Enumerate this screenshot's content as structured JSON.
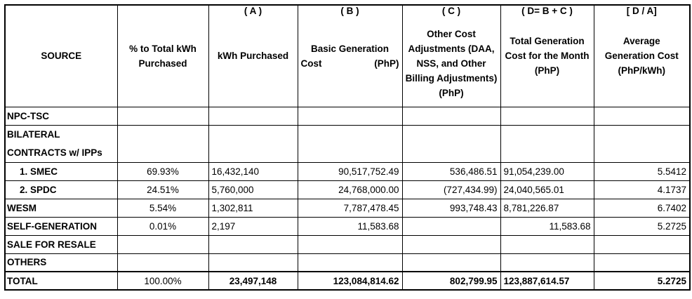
{
  "header": {
    "source": "SOURCE",
    "percent": "% to Total kWh Purchased",
    "kwh_letter": "( A )",
    "kwh": "kWh Purchased",
    "basic_letter": "( B )",
    "basic_line1": "Basic Generation",
    "basic_line2a": "Cost",
    "basic_line2b": "(PhP)",
    "other_letter": "( C )",
    "other": "Other Cost Adjustments (DAA, NSS, and Other Billing Adjustments) (PhP)",
    "total_letter": "( D= B + C )",
    "total": "Total Generation Cost for the Month (PhP)",
    "avg_letter": "[ D / A]",
    "avg": "Average Generation Cost (PhP/kWh)"
  },
  "rows": {
    "npc": {
      "source": "NPC-TSC",
      "percent": "",
      "kwh": "",
      "basic": "",
      "other": "",
      "total": "",
      "avg": ""
    },
    "bilateral": {
      "line1": "BILATERAL",
      "line2": "CONTRACTS w/ IPPs"
    },
    "smec": {
      "source": "1.  SMEC",
      "percent": "69.93%",
      "kwh": "16,432,140",
      "basic": "90,517,752.49",
      "other": "536,486.51",
      "total": "91,054,239.00",
      "avg": "5.5412"
    },
    "spdc": {
      "source": "2.  SPDC",
      "percent": "24.51%",
      "kwh": "5,760,000",
      "basic": "24,768,000.00",
      "other": "(727,434.99)",
      "total": "24,040,565.01",
      "avg": "4.1737"
    },
    "wesm": {
      "source": "WESM",
      "percent": "5.54%",
      "kwh": "1,302,811",
      "basic": "7,787,478.45",
      "other": "993,748.43",
      "total": "8,781,226.87",
      "avg": "6.7402"
    },
    "selfgen": {
      "source": "SELF-GENERATION",
      "percent": "0.01%",
      "kwh": "2,197",
      "basic": "11,583.68",
      "other": "",
      "total": "11,583.68",
      "avg": "5.2725"
    },
    "resale": {
      "source": "SALE FOR RESALE"
    },
    "others": {
      "source": "OTHERS"
    },
    "total": {
      "source": "TOTAL",
      "percent": "100.00%",
      "kwh": "23,497,148",
      "basic": "123,084,814.62",
      "other": "802,799.95",
      "total": "123,887,614.57",
      "avg": "5.2725"
    }
  }
}
